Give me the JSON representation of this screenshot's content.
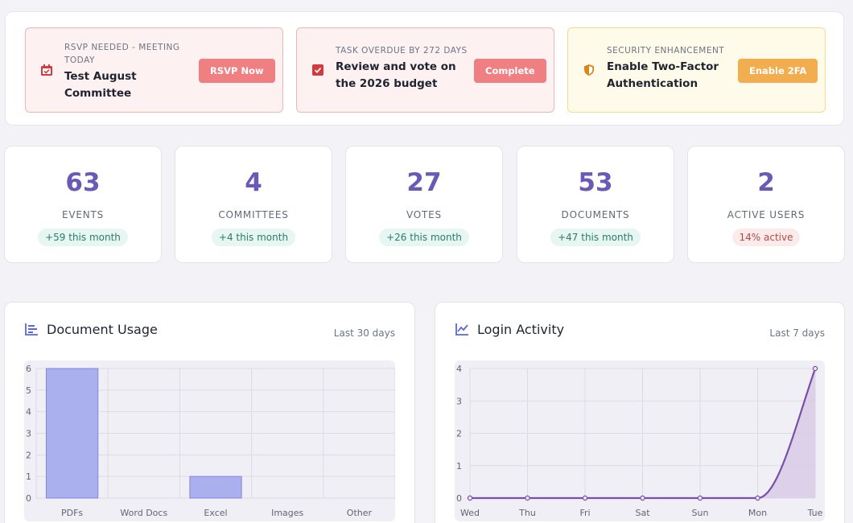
{
  "alerts": [
    {
      "kicker": "RSVP NEEDED - MEETING TODAY",
      "title": "Test August Committee",
      "button": "RSVP Now",
      "icon": "calendar-icon"
    },
    {
      "kicker": "TASK OVERDUE BY 272 DAYS",
      "title": "Review and vote on the 2026 budget",
      "button": "Complete",
      "icon": "checkbox-icon"
    },
    {
      "kicker": "SECURITY ENHANCEMENT",
      "title": "Enable Two-Factor Authentication",
      "button": "Enable 2FA",
      "icon": "shield-icon"
    }
  ],
  "stats": [
    {
      "value": "63",
      "label": "EVENTS",
      "badge": "+59 this month",
      "tone": "green"
    },
    {
      "value": "4",
      "label": "COMMITTEES",
      "badge": "+4 this month",
      "tone": "green"
    },
    {
      "value": "27",
      "label": "VOTES",
      "badge": "+26 this month",
      "tone": "green"
    },
    {
      "value": "53",
      "label": "DOCUMENTS",
      "badge": "+47 this month",
      "tone": "green"
    },
    {
      "value": "2",
      "label": "ACTIVE USERS",
      "badge": "14% active",
      "tone": "red"
    }
  ],
  "charts": {
    "document_usage": {
      "title": "Document Usage",
      "range": "Last 30 days",
      "icon": "bar-chart-icon"
    },
    "login_activity": {
      "title": "Login Activity",
      "range": "Last 7 days",
      "icon": "line-chart-icon"
    }
  },
  "colors": {
    "accent": "#6a5ab5",
    "danger": "#f07f82",
    "warning": "#f2ad4e",
    "bar_fill": "#aab0ee",
    "bar_stroke": "#7f87df",
    "line": "#7a4fa8",
    "area_fill": "#d8c9e6"
  },
  "chart_data": [
    {
      "type": "bar",
      "title": "Document Usage",
      "categories": [
        "PDFs",
        "Word Docs",
        "Excel",
        "Images",
        "Other"
      ],
      "values": [
        6,
        0,
        1,
        0,
        0
      ],
      "ylim": [
        0,
        6
      ],
      "yticks": [
        "0",
        "1",
        "2",
        "3",
        "4",
        "5",
        "6"
      ],
      "grid": true
    },
    {
      "type": "area",
      "title": "Login Activity",
      "categories": [
        "Wed",
        "Thu",
        "Fri",
        "Sat",
        "Sun",
        "Mon",
        "Tue"
      ],
      "values": [
        0,
        0,
        0,
        0,
        0,
        0,
        4
      ],
      "ylim": [
        0,
        4
      ],
      "yticks": [
        "0",
        "1",
        "2",
        "3",
        "4"
      ],
      "grid": true
    }
  ]
}
